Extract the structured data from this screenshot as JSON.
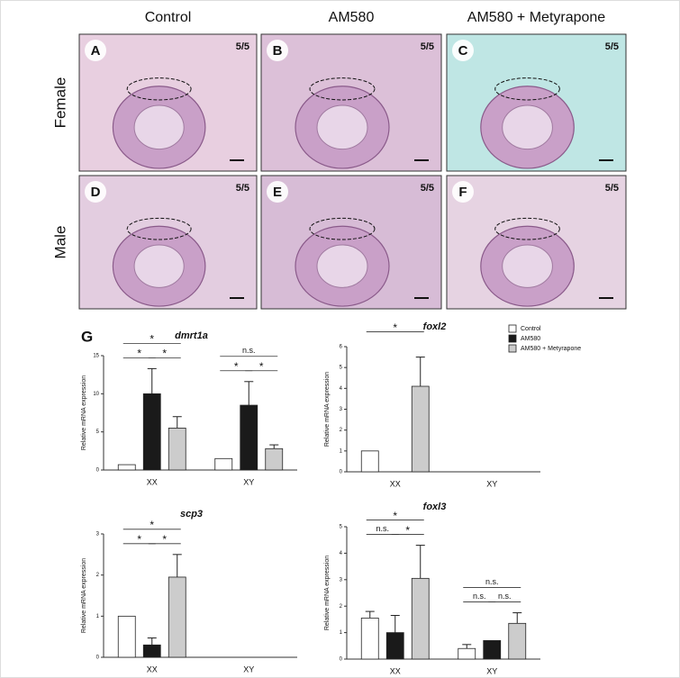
{
  "panels": {
    "columns": [
      "Control",
      "AM580",
      "AM580 + Metyrapone"
    ],
    "rows": [
      "Female",
      "Male"
    ],
    "images": [
      {
        "letter": "A",
        "count": "5/5"
      },
      {
        "letter": "B",
        "count": "5/5"
      },
      {
        "letter": "C",
        "count": "5/5"
      },
      {
        "letter": "D",
        "count": "5/5"
      },
      {
        "letter": "E",
        "count": "5/5"
      },
      {
        "letter": "F",
        "count": "5/5"
      }
    ]
  },
  "figure_label": "G",
  "chart_data": [
    {
      "type": "bar",
      "title": "dmrt1a",
      "y_label": "Relative mRNA expression",
      "categories": [
        "XX",
        "XY"
      ],
      "series": [
        {
          "color": "#ffffff",
          "values": [
            0.7,
            1.5
          ],
          "errors": [
            0,
            0
          ]
        },
        {
          "color": "#1a1a1a",
          "values": [
            10,
            8.5
          ],
          "errors": [
            3.3,
            3.1
          ]
        },
        {
          "color": "#cccccc",
          "values": [
            5.5,
            2.8
          ],
          "errors": [
            1.5,
            0.5
          ]
        }
      ],
      "ylim": [
        0,
        15
      ],
      "yticks": [
        0,
        5,
        10,
        15
      ],
      "significance": [
        [
          "*",
          "*",
          "*"
        ],
        [
          "*",
          "*",
          "n.s."
        ]
      ]
    },
    {
      "type": "bar",
      "title": "foxl2",
      "y_label": "Relative mRNA expression",
      "categories": [
        "XX",
        "XY"
      ],
      "series": [
        {
          "name": "Control",
          "color": "#ffffff",
          "values": [
            1,
            null
          ],
          "errors": [
            0,
            null
          ]
        },
        {
          "name": "AM580",
          "color": "#1a1a1a",
          "values": [
            0,
            null
          ],
          "errors": [
            0,
            null
          ]
        },
        {
          "name": "AM580 + Metyrapone",
          "color": "#cccccc",
          "values": [
            4.1,
            null
          ],
          "errors": [
            1.4,
            null
          ]
        }
      ],
      "ylim": [
        0,
        6
      ],
      "yticks": [
        0,
        1,
        2,
        3,
        4,
        5,
        6
      ],
      "legend": "upper right",
      "significance": [
        [
          null,
          null,
          "*"
        ],
        null
      ]
    },
    {
      "type": "bar",
      "title": "scp3",
      "y_label": "Relative mRNA expression",
      "categories": [
        "XX",
        "XY"
      ],
      "series": [
        {
          "color": "#ffffff",
          "values": [
            1,
            null
          ],
          "errors": [
            0,
            null
          ]
        },
        {
          "color": "#1a1a1a",
          "values": [
            0.3,
            null
          ],
          "errors": [
            0.17,
            null
          ]
        },
        {
          "color": "#cccccc",
          "values": [
            1.95,
            null
          ],
          "errors": [
            0.55,
            null
          ]
        }
      ],
      "ylim": [
        0,
        3
      ],
      "yticks": [
        0,
        1,
        2,
        3
      ],
      "significance": [
        [
          "*",
          "*",
          "*"
        ],
        null
      ]
    },
    {
      "type": "bar",
      "title": "foxl3",
      "y_label": "Relative mRNA expression",
      "categories": [
        "XX",
        "XY"
      ],
      "series": [
        {
          "color": "#ffffff",
          "values": [
            1.55,
            0.4
          ],
          "errors": [
            0.25,
            0.15
          ]
        },
        {
          "color": "#1a1a1a",
          "values": [
            1.0,
            0.7
          ],
          "errors": [
            0.65,
            0
          ]
        },
        {
          "color": "#cccccc",
          "values": [
            3.05,
            1.35
          ],
          "errors": [
            1.25,
            0.4
          ]
        }
      ],
      "ylim": [
        0,
        5
      ],
      "yticks": [
        0,
        1,
        2,
        3,
        4,
        5
      ],
      "significance": [
        [
          "n.s.",
          "*",
          "*"
        ],
        [
          "n.s.",
          "n.s.",
          "n.s."
        ]
      ]
    }
  ]
}
